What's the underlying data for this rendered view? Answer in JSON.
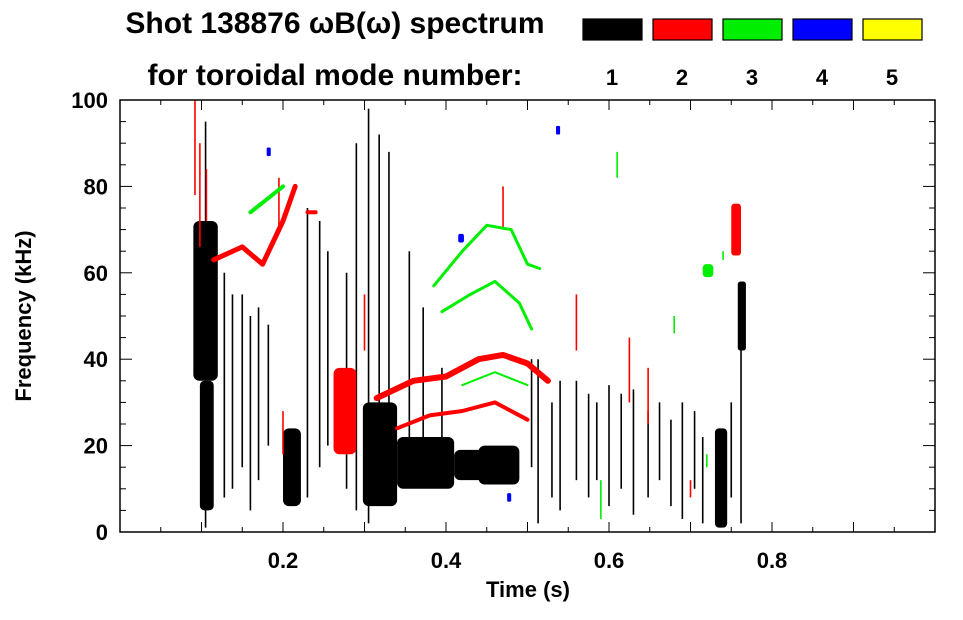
{
  "header": {
    "title_line1": "Shot 138876 ωB(ω) spectrum",
    "title_line2": "for toroidal mode number:"
  },
  "legend": [
    {
      "label": "1",
      "color": "#000000"
    },
    {
      "label": "2",
      "color": "#ff0000"
    },
    {
      "label": "3",
      "color": "#00ee00"
    },
    {
      "label": "4",
      "color": "#0000ff"
    },
    {
      "label": "5",
      "color": "#ffff00"
    }
  ],
  "chart_data": {
    "type": "heatmap",
    "title": "Shot 138876 ωB(ω) spectrum",
    "xlabel": "Time (s)",
    "ylabel": "Frequency (kHz)",
    "xlim": [
      0.0,
      1.0
    ],
    "ylim": [
      0,
      100
    ],
    "xticks": [
      0.2,
      0.4,
      0.6,
      0.8
    ],
    "xtick_labels": [
      "0.2",
      "0.4",
      "0.6",
      "0.8"
    ],
    "yticks": [
      0,
      20,
      40,
      60,
      80,
      100
    ],
    "ytick_labels": [
      "0",
      "20",
      "40",
      "60",
      "80",
      "100"
    ],
    "series": [
      {
        "name": "n=1",
        "color": "#000000",
        "blobs": [
          {
            "t0": 0.09,
            "t1": 0.12,
            "f0": 35,
            "f1": 72
          },
          {
            "t0": 0.098,
            "t1": 0.115,
            "f0": 5,
            "f1": 35
          },
          {
            "t0": 0.2,
            "t1": 0.222,
            "f0": 6,
            "f1": 24
          },
          {
            "t0": 0.298,
            "t1": 0.34,
            "f0": 6,
            "f1": 30
          },
          {
            "t0": 0.34,
            "t1": 0.41,
            "f0": 10,
            "f1": 22
          },
          {
            "t0": 0.41,
            "t1": 0.47,
            "f0": 12,
            "f1": 19
          },
          {
            "t0": 0.44,
            "t1": 0.49,
            "f0": 11,
            "f1": 20
          },
          {
            "t0": 0.73,
            "t1": 0.745,
            "f0": 1,
            "f1": 24
          },
          {
            "t0": 0.758,
            "t1": 0.768,
            "f0": 42,
            "f1": 58
          }
        ],
        "streaks": [
          {
            "t": 0.105,
            "f0": 1,
            "f1": 95
          },
          {
            "t": 0.128,
            "f0": 8,
            "f1": 60
          },
          {
            "t": 0.138,
            "f0": 10,
            "f1": 55
          },
          {
            "t": 0.15,
            "f0": 15,
            "f1": 55
          },
          {
            "t": 0.16,
            "f0": 5,
            "f1": 50
          },
          {
            "t": 0.17,
            "f0": 12,
            "f1": 52
          },
          {
            "t": 0.182,
            "f0": 20,
            "f1": 48
          },
          {
            "t": 0.23,
            "f0": 8,
            "f1": 75
          },
          {
            "t": 0.245,
            "f0": 15,
            "f1": 72
          },
          {
            "t": 0.255,
            "f0": 20,
            "f1": 65
          },
          {
            "t": 0.278,
            "f0": 10,
            "f1": 60
          },
          {
            "t": 0.29,
            "f0": 5,
            "f1": 90
          },
          {
            "t": 0.305,
            "f0": 2,
            "f1": 98
          },
          {
            "t": 0.318,
            "f0": 8,
            "f1": 92
          },
          {
            "t": 0.33,
            "f0": 10,
            "f1": 88
          },
          {
            "t": 0.355,
            "f0": 15,
            "f1": 65
          },
          {
            "t": 0.372,
            "f0": 22,
            "f1": 52
          },
          {
            "t": 0.395,
            "f0": 20,
            "f1": 38
          },
          {
            "t": 0.505,
            "f0": 15,
            "f1": 40
          },
          {
            "t": 0.513,
            "f0": 2,
            "f1": 40
          },
          {
            "t": 0.53,
            "f0": 8,
            "f1": 30
          },
          {
            "t": 0.54,
            "f0": 5,
            "f1": 35
          },
          {
            "t": 0.56,
            "f0": 12,
            "f1": 35
          },
          {
            "t": 0.575,
            "f0": 8,
            "f1": 32
          },
          {
            "t": 0.585,
            "f0": 12,
            "f1": 30
          },
          {
            "t": 0.6,
            "f0": 6,
            "f1": 34
          },
          {
            "t": 0.615,
            "f0": 10,
            "f1": 32
          },
          {
            "t": 0.63,
            "f0": 4,
            "f1": 33
          },
          {
            "t": 0.648,
            "f0": 8,
            "f1": 28
          },
          {
            "t": 0.662,
            "f0": 12,
            "f1": 30
          },
          {
            "t": 0.676,
            "f0": 6,
            "f1": 26
          },
          {
            "t": 0.69,
            "f0": 3,
            "f1": 30
          },
          {
            "t": 0.705,
            "f0": 10,
            "f1": 28
          },
          {
            "t": 0.715,
            "f0": 2,
            "f1": 22
          },
          {
            "t": 0.75,
            "f0": 8,
            "f1": 30
          },
          {
            "t": 0.762,
            "f0": 2,
            "f1": 58
          }
        ]
      },
      {
        "name": "n=2",
        "color": "#ff0000",
        "blobs": [
          {
            "t0": 0.262,
            "t1": 0.29,
            "f0": 18,
            "f1": 38
          },
          {
            "t0": 0.75,
            "t1": 0.762,
            "f0": 64,
            "f1": 76
          }
        ],
        "streaks": [
          {
            "t": 0.092,
            "f0": 78,
            "f1": 100
          },
          {
            "t": 0.098,
            "f0": 66,
            "f1": 90
          },
          {
            "t": 0.106,
            "f0": 72,
            "f1": 84
          },
          {
            "t": 0.195,
            "f0": 70,
            "f1": 82
          },
          {
            "t": 0.2,
            "f0": 18,
            "f1": 28
          },
          {
            "t": 0.278,
            "f0": 18,
            "f1": 30
          },
          {
            "t": 0.3,
            "f0": 42,
            "f1": 55
          },
          {
            "t": 0.47,
            "f0": 70,
            "f1": 80
          },
          {
            "t": 0.56,
            "f0": 42,
            "f1": 55
          },
          {
            "t": 0.625,
            "f0": 30,
            "f1": 45
          },
          {
            "t": 0.648,
            "f0": 25,
            "f1": 38
          },
          {
            "t": 0.7,
            "f0": 8,
            "f1": 12
          }
        ],
        "tracks": [
          {
            "t": [
              0.115,
              0.15,
              0.175,
              0.2,
              0.215
            ],
            "f": [
              63,
              66,
              62,
              72,
              80
            ],
            "w": 5
          },
          {
            "t": [
              0.23,
              0.24
            ],
            "f": [
              74,
              74
            ],
            "w": 4
          },
          {
            "t": [
              0.315,
              0.36,
              0.4,
              0.44,
              0.47,
              0.5,
              0.525
            ],
            "f": [
              31,
              35,
              36,
              40,
              41,
              39,
              35
            ],
            "w": 6
          },
          {
            "t": [
              0.34,
              0.38,
              0.42,
              0.46,
              0.5
            ],
            "f": [
              24,
              27,
              28,
              30,
              26
            ],
            "w": 4
          }
        ]
      },
      {
        "name": "n=3",
        "color": "#00ee00",
        "streaks": [
          {
            "t": 0.59,
            "f0": 3,
            "f1": 12
          },
          {
            "t": 0.61,
            "f0": 82,
            "f1": 88
          },
          {
            "t": 0.68,
            "f0": 46,
            "f1": 50
          },
          {
            "t": 0.72,
            "f0": 15,
            "f1": 18
          },
          {
            "t": 0.74,
            "f0": 63,
            "f1": 65
          }
        ],
        "blobs": [
          {
            "t0": 0.715,
            "t1": 0.728,
            "f0": 59,
            "f1": 62
          }
        ],
        "tracks": [
          {
            "t": [
              0.16,
              0.18,
              0.2
            ],
            "f": [
              74,
              77,
              80
            ],
            "w": 4
          },
          {
            "t": [
              0.385,
              0.42,
              0.45,
              0.48,
              0.5,
              0.515
            ],
            "f": [
              57,
              65,
              71,
              70,
              62,
              61
            ],
            "w": 3
          },
          {
            "t": [
              0.395,
              0.43,
              0.46,
              0.49,
              0.505
            ],
            "f": [
              51,
              55,
              58,
              53,
              47
            ],
            "w": 3
          },
          {
            "t": [
              0.42,
              0.46,
              0.5
            ],
            "f": [
              34,
              37,
              34
            ],
            "w": 2
          }
        ]
      },
      {
        "name": "n=4",
        "color": "#0000ff",
        "blobs": [
          {
            "t0": 0.415,
            "t1": 0.422,
            "f0": 67,
            "f1": 69
          },
          {
            "t0": 0.535,
            "t1": 0.54,
            "f0": 92,
            "f1": 94
          },
          {
            "t0": 0.18,
            "t1": 0.185,
            "f0": 87,
            "f1": 89
          },
          {
            "t0": 0.475,
            "t1": 0.48,
            "f0": 7,
            "f1": 9
          }
        ]
      },
      {
        "name": "n=5",
        "color": "#ffff00",
        "blobs": []
      }
    ]
  }
}
